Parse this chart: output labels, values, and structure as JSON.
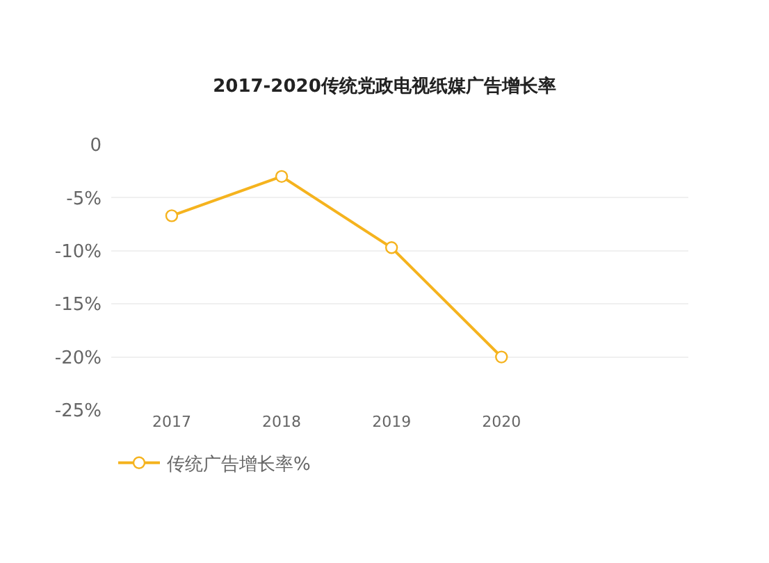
{
  "chart_data": {
    "type": "line",
    "title": "2017-2020传统党政电视纸媒广告增长率",
    "categories": [
      "2017",
      "2018",
      "2019",
      "2020"
    ],
    "series": [
      {
        "name": "传统广告增长率%",
        "color": "#f5b31e",
        "values": [
          -6.7,
          -3.0,
          -9.7,
          -20.0
        ]
      }
    ],
    "ylim": [
      -25,
      0
    ],
    "yticks": [
      {
        "value": 0,
        "label": "0"
      },
      {
        "value": -5,
        "label": "-5%"
      },
      {
        "value": -10,
        "label": "-10%"
      },
      {
        "value": -15,
        "label": "-15%"
      },
      {
        "value": -20,
        "label": "-20%"
      },
      {
        "value": -25,
        "label": "-25%"
      }
    ],
    "grid": "y",
    "legend": "bottom left",
    "marker": "circle",
    "line_style": "solid"
  }
}
